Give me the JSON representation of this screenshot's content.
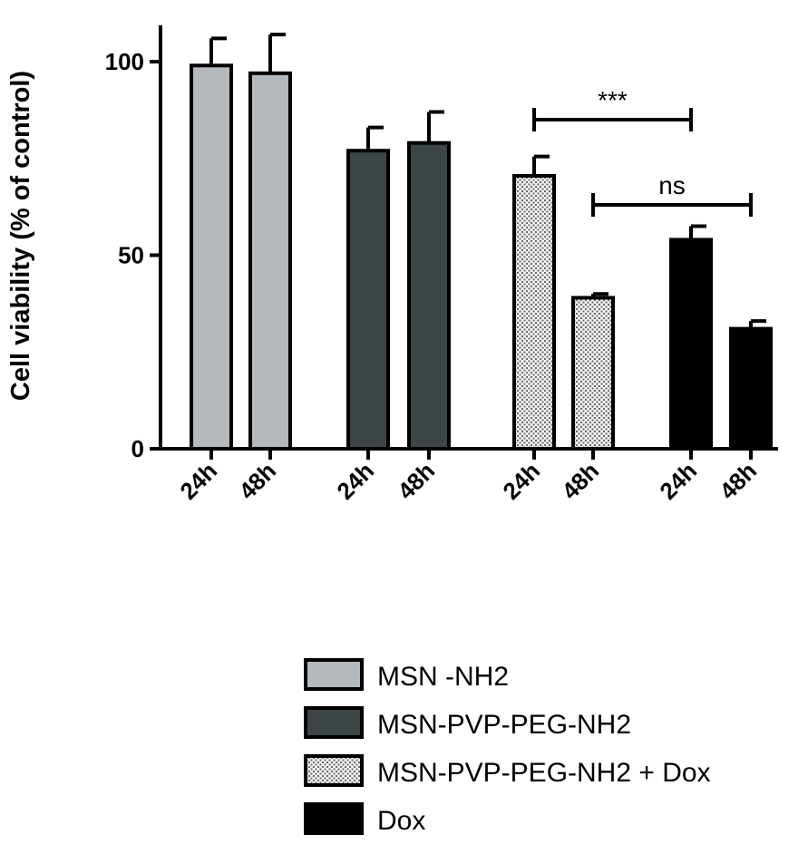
{
  "chart_data": {
    "type": "bar",
    "ylabel": "Cell viability (% of control)",
    "xlabel": "",
    "ylim": [
      0,
      110
    ],
    "yticks": [
      0,
      50,
      100
    ],
    "categories": [
      "24h",
      "48h",
      "24h",
      "48h",
      "24h",
      "48h",
      "24h",
      "48h"
    ],
    "groups": [
      {
        "name": "MSN -NH2",
        "color": "#b3b9bc",
        "pattern": "solid",
        "bars": [
          {
            "label": "24h",
            "value": 99,
            "error": 7
          },
          {
            "label": "48h",
            "value": 97,
            "error": 10
          }
        ]
      },
      {
        "name": "MSN-PVP-PEG-NH2",
        "color": "#3e4547",
        "pattern": "solid",
        "bars": [
          {
            "label": "24h",
            "value": 77,
            "error": 6
          },
          {
            "label": "48h",
            "value": 79,
            "error": 8
          }
        ]
      },
      {
        "name": "MSN-PVP-PEG-NH2 + Dox",
        "color": "#dcdcdc",
        "pattern": "dotted",
        "bars": [
          {
            "label": "24h",
            "value": 70.5,
            "error": 5
          },
          {
            "label": "48h",
            "value": 39,
            "error": 1
          }
        ]
      },
      {
        "name": "Dox",
        "color": "#000000",
        "pattern": "solid",
        "bars": [
          {
            "label": "24h",
            "value": 54,
            "error": 3.5
          },
          {
            "label": "48h",
            "value": 31,
            "error": 2
          }
        ]
      }
    ],
    "annotations": [
      {
        "text": "***",
        "from_bar": 4,
        "to_bar": 6,
        "y": 85
      },
      {
        "text": "ns",
        "from_bar": 5,
        "to_bar": 7,
        "y": 63
      }
    ],
    "legend": {
      "placement": "bottom-right"
    },
    "grid": false
  }
}
